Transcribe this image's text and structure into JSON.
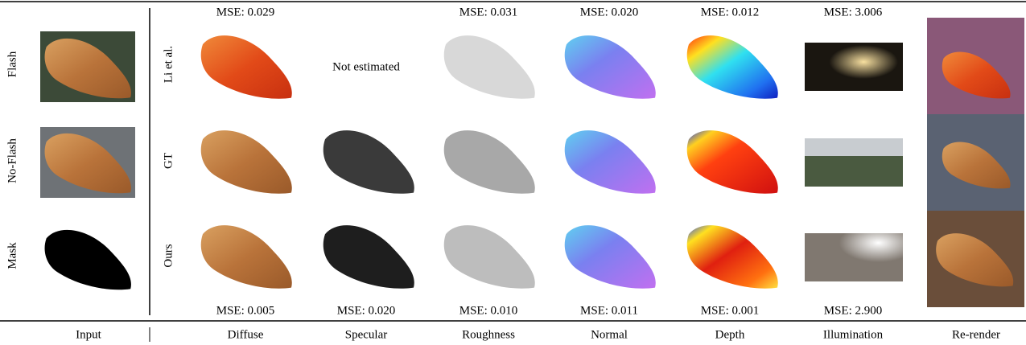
{
  "input": {
    "label": "Input",
    "row_labels": [
      "Flash",
      "No-Flash",
      "Mask"
    ]
  },
  "methods": [
    "Li et al.",
    "GT",
    "Ours"
  ],
  "columns": [
    "Diffuse",
    "Specular",
    "Roughness",
    "Normal",
    "Depth",
    "Illumination",
    "Re-render"
  ],
  "not_estimated": "Not estimated",
  "mse_li": {
    "diffuse": "MSE: 0.029",
    "roughness": "MSE: 0.031",
    "normal": "MSE: 0.020",
    "depth": "MSE: 0.012",
    "illumination": "MSE: 3.006"
  },
  "mse_ours": {
    "diffuse": "MSE: 0.005",
    "specular": "MSE: 0.020",
    "roughness": "MSE: 0.010",
    "normal": "MSE: 0.011",
    "depth": "MSE: 0.001",
    "illumination": "MSE: 2.900"
  }
}
